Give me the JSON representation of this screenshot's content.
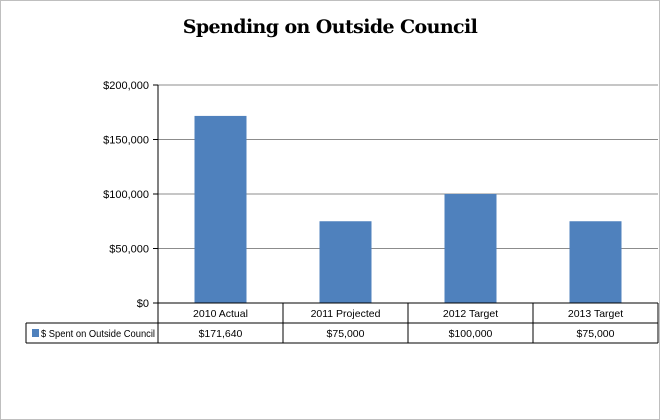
{
  "chart_data": {
    "type": "bar",
    "title": "Spending on Outside Council",
    "categories": [
      "2010 Actual",
      "2011 Projected",
      "2012 Target",
      "2013 Target"
    ],
    "series": [
      {
        "name": "$ Spent on Outside Council",
        "values": [
          171640,
          75000,
          100000,
          75000
        ],
        "display_values": [
          "$171,640",
          "$75,000",
          "$100,000",
          "$75,000"
        ],
        "color": "#4f81bd"
      }
    ],
    "ylim": [
      0,
      200000
    ],
    "y_ticks": [
      "$0",
      "$50,000",
      "$100,000",
      "$150,000",
      "$200,000"
    ],
    "y_tick_values": [
      0,
      50000,
      100000,
      150000,
      200000
    ],
    "grid": true,
    "legend": "data-table",
    "xlabel": "",
    "ylabel": ""
  }
}
